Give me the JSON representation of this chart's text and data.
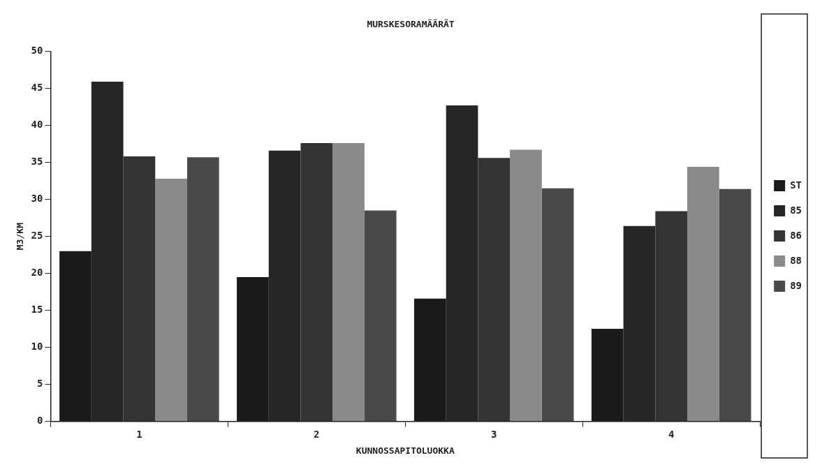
{
  "chart_data": {
    "type": "bar",
    "title": "MURSKESORAMÄÄRÄT",
    "xlabel": "KUNNOSSAPITOLUOKKA",
    "ylabel": "M3/KM",
    "categories": [
      "1",
      "2",
      "3",
      "4"
    ],
    "series": [
      {
        "name": "ST",
        "color": "#1a1a1a",
        "values": [
          23,
          19.5,
          16.6,
          12.5
        ]
      },
      {
        "name": "85",
        "color": "#262626",
        "values": [
          45.9,
          36.6,
          42.7,
          26.4
        ]
      },
      {
        "name": "86",
        "color": "#333333",
        "values": [
          35.8,
          37.6,
          35.6,
          28.4
        ]
      },
      {
        "name": "88",
        "color": "#8a8a8a",
        "values": [
          32.8,
          37.6,
          36.7,
          34.4
        ]
      },
      {
        "name": "89",
        "color": "#4a4a4a",
        "values": [
          35.7,
          28.5,
          31.5,
          31.4
        ]
      }
    ],
    "ylim": [
      0,
      50
    ],
    "yticks": [
      0,
      5,
      10,
      15,
      20,
      25,
      30,
      35,
      40,
      45,
      50
    ],
    "grid": false,
    "legend": "right"
  }
}
